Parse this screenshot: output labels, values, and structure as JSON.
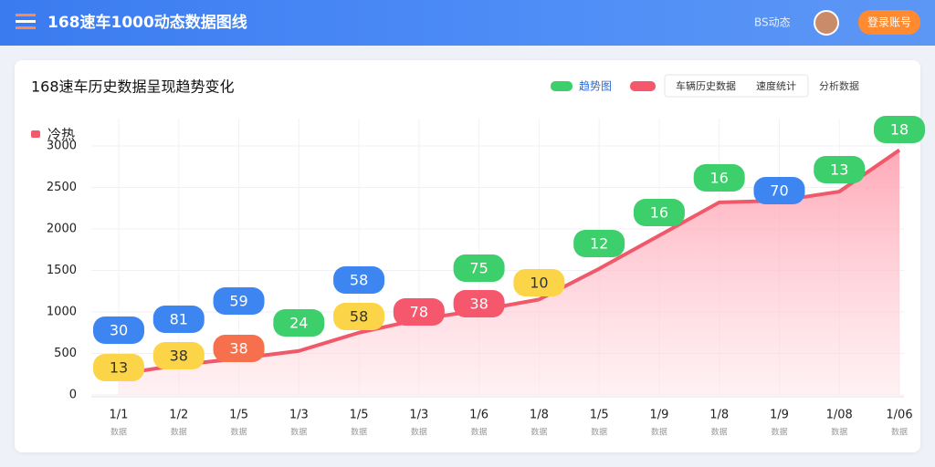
{
  "header": {
    "title": "168速车1000动态数据图线",
    "user": "BS动态",
    "button": "登录账号"
  },
  "legend_items": [
    "趋势图",
    "车辆历史数据",
    "速度统计",
    "分析数据"
  ],
  "chart_data": {
    "type": "line",
    "title": "168速车历史数据呈现趋势变化",
    "y_label": "冷热",
    "categories": [
      "1/1",
      "1/2",
      "1/5",
      "1/3",
      "1/5",
      "1/3",
      "1/6",
      "1/8",
      "1/5",
      "1/9",
      "1/8",
      "1/9",
      "1/08",
      "1/06"
    ],
    "sublabels": [
      "数据",
      "数据",
      "数据",
      "数据",
      "数据",
      "数据",
      "数据",
      "数据",
      "数据",
      "数据",
      "数据",
      "数据",
      "数据",
      "数据"
    ],
    "values": [
      250,
      360,
      440,
      530,
      750,
      910,
      1020,
      1150,
      1520,
      1920,
      2320,
      2340,
      2450,
      2950
    ],
    "color": "#f0596a",
    "ylim": [
      0,
      3000
    ],
    "yticks": [
      0,
      500,
      1000,
      1500,
      2000,
      2500,
      3000
    ],
    "grid": true,
    "annotations": [
      {
        "text": "30",
        "color": "#3d86f2"
      },
      {
        "text": "13",
        "color": "#fcd447"
      },
      {
        "text": "81",
        "color": "#3d86f2"
      },
      {
        "text": "38",
        "color": "#fcd447"
      },
      {
        "text": "59",
        "color": "#3d86f2"
      },
      {
        "text": "38",
        "color": "#f7704d"
      },
      {
        "text": "24",
        "color": "#3ccf6b"
      },
      {
        "text": "58",
        "color": "#3d86f2"
      },
      {
        "text": "58",
        "color": "#fcd447"
      },
      {
        "text": "78",
        "color": "#f5576c"
      },
      {
        "text": "75",
        "color": "#3ccf6b"
      },
      {
        "text": "38",
        "color": "#f5576c"
      },
      {
        "text": "10",
        "color": "#fcd447"
      },
      {
        "text": "12",
        "color": "#3ccf6b"
      },
      {
        "text": "16",
        "color": "#3ccf6b"
      },
      {
        "text": "16",
        "color": "#3ccf6b"
      },
      {
        "text": "70",
        "color": "#3d86f2"
      },
      {
        "text": "13",
        "color": "#3ccf6b"
      },
      {
        "text": "18",
        "color": "#3ccf6b"
      }
    ]
  }
}
